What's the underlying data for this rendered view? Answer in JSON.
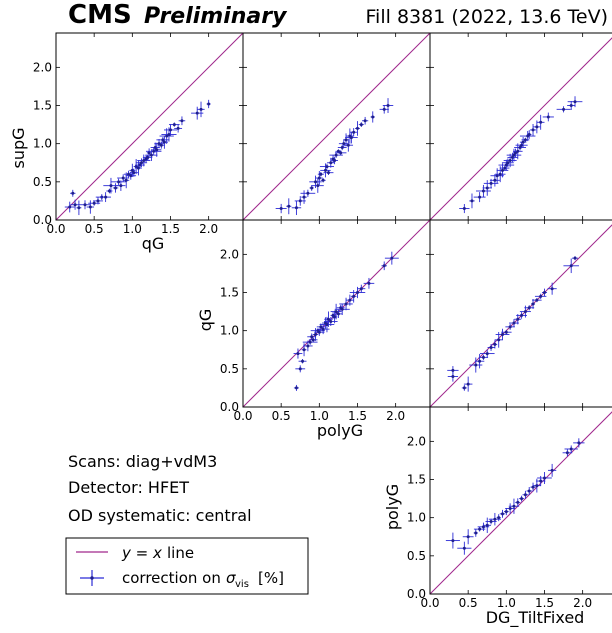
{
  "header": {
    "experiment": "CMS",
    "status": "Preliminary",
    "run_info": "Fill 8381 (2022, 13.6 TeV)"
  },
  "info": {
    "scans": "Scans: diag+vdM3",
    "detector": "Detector: HFET",
    "systematic": "OD systematic: central"
  },
  "legend": {
    "line_label": "line",
    "line_math": "y = x",
    "points_label_prefix": "correction on",
    "points_label_suffix": "[%]",
    "sigma_symbol": "σ",
    "sigma_sub": "vis"
  },
  "colors": {
    "identity_line": "#a0288c",
    "points": "#1f1f8f",
    "errorbars": "#2b2bd6"
  },
  "axes": {
    "supG": "supG",
    "qG": "qG",
    "polyG": "polyG",
    "DG_TiltFixed": "DG_TiltFixed",
    "ticks": [
      "0.0",
      "0.5",
      "1.0",
      "1.5",
      "2.0"
    ]
  },
  "chart_data": [
    {
      "type": "scatter",
      "panel": "row1-col1",
      "xlabel": "qG",
      "ylabel": "supG",
      "xlim": [
        0,
        2.45
      ],
      "ylim": [
        0,
        2.45
      ],
      "reference_line": "y = x",
      "points": [
        [
          0.18,
          0.17
        ],
        [
          0.22,
          0.35
        ],
        [
          0.25,
          0.2
        ],
        [
          0.3,
          0.16
        ],
        [
          0.38,
          0.2
        ],
        [
          0.45,
          0.17
        ],
        [
          0.5,
          0.22
        ],
        [
          0.55,
          0.25
        ],
        [
          0.6,
          0.3
        ],
        [
          0.65,
          0.3
        ],
        [
          0.7,
          0.38
        ],
        [
          0.72,
          0.45
        ],
        [
          0.78,
          0.42
        ],
        [
          0.82,
          0.5
        ],
        [
          0.85,
          0.45
        ],
        [
          0.88,
          0.55
        ],
        [
          0.92,
          0.52
        ],
        [
          0.95,
          0.6
        ],
        [
          0.98,
          0.58
        ],
        [
          1.0,
          0.65
        ],
        [
          1.02,
          0.62
        ],
        [
          1.05,
          0.7
        ],
        [
          1.08,
          0.68
        ],
        [
          1.1,
          0.72
        ],
        [
          1.12,
          0.75
        ],
        [
          1.15,
          0.78
        ],
        [
          1.18,
          0.8
        ],
        [
          1.2,
          0.82
        ],
        [
          1.22,
          0.88
        ],
        [
          1.25,
          0.85
        ],
        [
          1.28,
          0.9
        ],
        [
          1.3,
          0.95
        ],
        [
          1.32,
          0.92
        ],
        [
          1.35,
          1.0
        ],
        [
          1.38,
          0.98
        ],
        [
          1.4,
          1.05
        ],
        [
          1.42,
          1.02
        ],
        [
          1.45,
          1.1
        ],
        [
          1.48,
          1.12
        ],
        [
          1.5,
          1.18
        ],
        [
          1.55,
          1.25
        ],
        [
          1.6,
          1.2
        ],
        [
          1.65,
          1.3
        ],
        [
          1.85,
          1.4
        ],
        [
          1.9,
          1.45
        ],
        [
          2.0,
          1.52
        ]
      ]
    },
    {
      "type": "scatter",
      "panel": "row1-col2",
      "xlabel": "",
      "ylabel": "supG",
      "xlim": [
        0,
        2.45
      ],
      "ylim": [
        0,
        2.45
      ],
      "reference_line": "y = x",
      "points": [
        [
          0.5,
          0.15
        ],
        [
          0.6,
          0.18
        ],
        [
          0.7,
          0.16
        ],
        [
          0.75,
          0.25
        ],
        [
          0.8,
          0.3
        ],
        [
          0.85,
          0.35
        ],
        [
          0.9,
          0.42
        ],
        [
          0.95,
          0.5
        ],
        [
          0.98,
          0.45
        ],
        [
          1.0,
          0.55
        ],
        [
          1.02,
          0.6
        ],
        [
          1.05,
          0.52
        ],
        [
          1.08,
          0.65
        ],
        [
          1.1,
          0.7
        ],
        [
          1.12,
          0.62
        ],
        [
          1.15,
          0.75
        ],
        [
          1.18,
          0.8
        ],
        [
          1.2,
          0.78
        ],
        [
          1.22,
          0.85
        ],
        [
          1.25,
          0.9
        ],
        [
          1.28,
          0.88
        ],
        [
          1.3,
          0.95
        ],
        [
          1.32,
          1.0
        ],
        [
          1.35,
          1.05
        ],
        [
          1.38,
          0.98
        ],
        [
          1.4,
          1.1
        ],
        [
          1.42,
          1.08
        ],
        [
          1.45,
          1.15
        ],
        [
          1.5,
          1.2
        ],
        [
          1.55,
          1.25
        ],
        [
          1.6,
          1.3
        ],
        [
          1.7,
          1.35
        ],
        [
          1.85,
          1.45
        ],
        [
          1.9,
          1.5
        ]
      ]
    },
    {
      "type": "scatter",
      "panel": "row1-col3",
      "xlabel": "",
      "ylabel": "supG",
      "xlim": [
        0,
        2.45
      ],
      "ylim": [
        0,
        2.45
      ],
      "reference_line": "y = x",
      "points": [
        [
          0.45,
          0.15
        ],
        [
          0.55,
          0.25
        ],
        [
          0.65,
          0.3
        ],
        [
          0.7,
          0.38
        ],
        [
          0.75,
          0.42
        ],
        [
          0.8,
          0.48
        ],
        [
          0.85,
          0.52
        ],
        [
          0.88,
          0.58
        ],
        [
          0.92,
          0.6
        ],
        [
          0.95,
          0.65
        ],
        [
          0.98,
          0.68
        ],
        [
          1.0,
          0.72
        ],
        [
          1.02,
          0.75
        ],
        [
          1.05,
          0.78
        ],
        [
          1.08,
          0.82
        ],
        [
          1.1,
          0.85
        ],
        [
          1.12,
          0.88
        ],
        [
          1.15,
          0.9
        ],
        [
          1.18,
          0.95
        ],
        [
          1.2,
          0.98
        ],
        [
          1.22,
          1.02
        ],
        [
          1.25,
          1.05
        ],
        [
          1.28,
          1.1
        ],
        [
          1.3,
          1.12
        ],
        [
          1.35,
          1.18
        ],
        [
          1.4,
          1.22
        ],
        [
          1.45,
          1.28
        ],
        [
          1.55,
          1.35
        ],
        [
          1.75,
          1.45
        ],
        [
          1.85,
          1.5
        ],
        [
          1.9,
          1.55
        ]
      ]
    },
    {
      "type": "scatter",
      "panel": "row2-col2",
      "xlabel": "polyG",
      "ylabel": "qG",
      "xlim": [
        0,
        2.45
      ],
      "ylim": [
        0,
        2.45
      ],
      "reference_line": "y = x",
      "points": [
        [
          0.7,
          0.25
        ],
        [
          0.75,
          0.5
        ],
        [
          0.72,
          0.7
        ],
        [
          0.78,
          0.6
        ],
        [
          0.8,
          0.75
        ],
        [
          0.85,
          0.8
        ],
        [
          0.88,
          0.85
        ],
        [
          0.9,
          0.92
        ],
        [
          0.92,
          0.88
        ],
        [
          0.95,
          0.95
        ],
        [
          0.98,
          1.0
        ],
        [
          1.0,
          0.98
        ],
        [
          1.02,
          1.05
        ],
        [
          1.05,
          1.02
        ],
        [
          1.08,
          1.1
        ],
        [
          1.1,
          1.08
        ],
        [
          1.12,
          1.15
        ],
        [
          1.15,
          1.12
        ],
        [
          1.18,
          1.2
        ],
        [
          1.2,
          1.18
        ],
        [
          1.22,
          1.25
        ],
        [
          1.25,
          1.22
        ],
        [
          1.28,
          1.3
        ],
        [
          1.3,
          1.28
        ],
        [
          1.35,
          1.35
        ],
        [
          1.4,
          1.4
        ],
        [
          1.45,
          1.45
        ],
        [
          1.5,
          1.5
        ],
        [
          1.55,
          1.55
        ],
        [
          1.65,
          1.62
        ],
        [
          1.85,
          1.85
        ],
        [
          1.95,
          1.95
        ]
      ]
    },
    {
      "type": "scatter",
      "panel": "row2-col3",
      "xlabel": "",
      "ylabel": "qG",
      "xlim": [
        0,
        2.45
      ],
      "ylim": [
        0,
        2.45
      ],
      "reference_line": "y = x",
      "points": [
        [
          0.3,
          0.4
        ],
        [
          0.3,
          0.48
        ],
        [
          0.45,
          0.25
        ],
        [
          0.5,
          0.3
        ],
        [
          0.6,
          0.55
        ],
        [
          0.65,
          0.6
        ],
        [
          0.7,
          0.65
        ],
        [
          0.75,
          0.7
        ],
        [
          0.8,
          0.78
        ],
        [
          0.85,
          0.82
        ],
        [
          0.9,
          0.88
        ],
        [
          0.95,
          0.95
        ],
        [
          1.0,
          0.98
        ],
        [
          1.05,
          1.05
        ],
        [
          1.1,
          1.1
        ],
        [
          1.15,
          1.15
        ],
        [
          1.2,
          1.2
        ],
        [
          1.25,
          1.25
        ],
        [
          1.3,
          1.3
        ],
        [
          1.35,
          1.35
        ],
        [
          1.4,
          1.4
        ],
        [
          1.45,
          1.45
        ],
        [
          1.5,
          1.5
        ],
        [
          1.6,
          1.55
        ],
        [
          1.85,
          1.85
        ],
        [
          1.9,
          1.95
        ]
      ]
    },
    {
      "type": "scatter",
      "panel": "row3-col3",
      "xlabel": "DG_TiltFixed",
      "ylabel": "polyG",
      "xlim": [
        0,
        2.45
      ],
      "ylim": [
        0,
        2.45
      ],
      "reference_line": "y = x",
      "points": [
        [
          0.3,
          0.7
        ],
        [
          0.45,
          0.6
        ],
        [
          0.5,
          0.75
        ],
        [
          0.6,
          0.8
        ],
        [
          0.65,
          0.85
        ],
        [
          0.7,
          0.88
        ],
        [
          0.75,
          0.9
        ],
        [
          0.8,
          0.95
        ],
        [
          0.85,
          0.98
        ],
        [
          0.9,
          1.0
        ],
        [
          0.95,
          1.05
        ],
        [
          1.0,
          1.08
        ],
        [
          1.05,
          1.12
        ],
        [
          1.1,
          1.15
        ],
        [
          1.15,
          1.2
        ],
        [
          1.2,
          1.25
        ],
        [
          1.25,
          1.3
        ],
        [
          1.3,
          1.35
        ],
        [
          1.35,
          1.4
        ],
        [
          1.4,
          1.42
        ],
        [
          1.45,
          1.48
        ],
        [
          1.5,
          1.52
        ],
        [
          1.6,
          1.62
        ],
        [
          1.8,
          1.85
        ],
        [
          1.85,
          1.9
        ],
        [
          1.95,
          1.98
        ]
      ]
    }
  ]
}
